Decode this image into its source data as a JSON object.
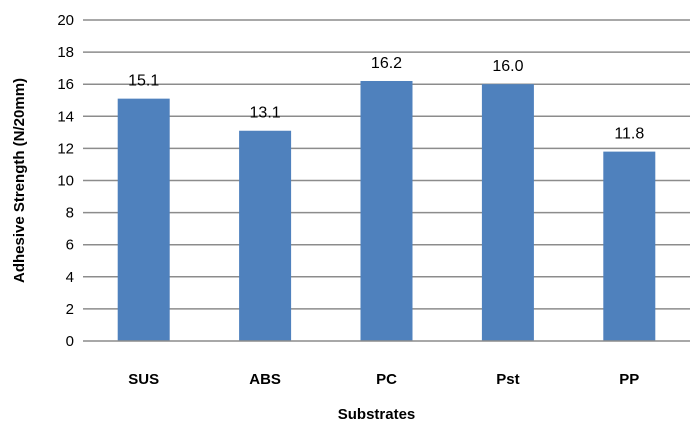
{
  "chart_data": {
    "type": "bar",
    "categories": [
      "SUS",
      "ABS",
      "PC",
      "Pst",
      "PP"
    ],
    "values": [
      15.1,
      13.1,
      16.2,
      16.0,
      11.8
    ],
    "data_labels": [
      "15.1",
      "13.1",
      "16.2",
      "16.0",
      "11.8"
    ],
    "title": "",
    "xlabel": "Substrates",
    "ylabel": "Adhesive Strength (N/20mm)",
    "ylim": [
      0,
      20
    ],
    "yticks": [
      0,
      2,
      4,
      6,
      8,
      10,
      12,
      14,
      16,
      18,
      20
    ],
    "grid": true,
    "legend": "none",
    "bar_color": "#4f81bd",
    "grid_color": "#8c8c8c"
  }
}
